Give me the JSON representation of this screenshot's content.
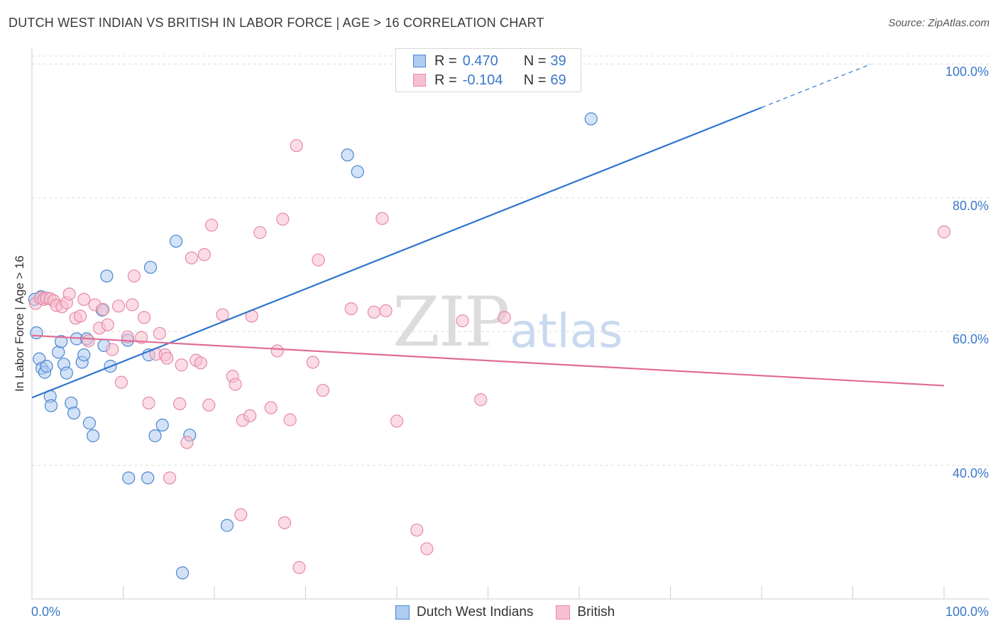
{
  "title": "DUTCH WEST INDIAN VS BRITISH IN LABOR FORCE | AGE > 16 CORRELATION CHART",
  "source": "Source: ZipAtlas.com",
  "watermark": {
    "zip": "ZIP",
    "atlas": "atlas"
  },
  "colors": {
    "blue_fill": "#aecbf0",
    "blue_stroke": "#4a86d0",
    "blue_line": "#2f74cf",
    "pink_fill": "#f7c0d0",
    "pink_stroke": "#e58aa6",
    "pink_line": "#e06c94",
    "axis_text": "#3a78c9",
    "grid": "#dddddd"
  },
  "legend": {
    "rows": [
      {
        "r_label": "R =",
        "r_value": "0.470",
        "n_label": "N =",
        "n_value": "39",
        "swatch": "blue"
      },
      {
        "r_label": "R =",
        "r_value": "-0.104",
        "n_label": "N =",
        "n_value": "69",
        "swatch": "pink"
      }
    ]
  },
  "bottom_legend": [
    {
      "label": "Dutch West Indians",
      "swatch": "blue"
    },
    {
      "label": "British",
      "swatch": "pink"
    }
  ],
  "x_axis": {
    "min_label": "0.0%",
    "max_label": "100.0%"
  },
  "chart_data": {
    "type": "scatter",
    "title": "DUTCH WEST INDIAN VS BRITISH IN LABOR FORCE | AGE > 16 CORRELATION CHART",
    "xlabel": "",
    "ylabel": "In Labor Force | Age > 16",
    "xlim": [
      0,
      100
    ],
    "ylim": [
      20.0,
      103.0
    ],
    "y_ticks": [
      {
        "value": 40,
        "label": "40.0%"
      },
      {
        "value": 60,
        "label": "60.0%"
      },
      {
        "value": 80,
        "label": "80.0%"
      },
      {
        "value": 100,
        "label": "100.0%"
      }
    ],
    "series": [
      {
        "name": "Dutch West Indians",
        "color": "blue",
        "points": [
          [
            0.5,
            59.8
          ],
          [
            0.8,
            55.9
          ],
          [
            1.1,
            54.5
          ],
          [
            1.4,
            53.9
          ],
          [
            1.6,
            54.8
          ],
          [
            2.0,
            50.3
          ],
          [
            2.1,
            48.9
          ],
          [
            2.9,
            56.9
          ],
          [
            3.2,
            58.5
          ],
          [
            3.5,
            55.1
          ],
          [
            3.8,
            53.8
          ],
          [
            4.3,
            49.3
          ],
          [
            4.6,
            47.8
          ],
          [
            4.9,
            58.9
          ],
          [
            5.5,
            55.4
          ],
          [
            5.7,
            56.5
          ],
          [
            6.0,
            58.9
          ],
          [
            6.3,
            46.3
          ],
          [
            6.7,
            44.4
          ],
          [
            7.7,
            63.2
          ],
          [
            7.9,
            57.9
          ],
          [
            8.2,
            68.3
          ],
          [
            8.6,
            54.8
          ],
          [
            10.5,
            58.7
          ],
          [
            10.6,
            38.1
          ],
          [
            12.7,
            38.1
          ],
          [
            12.8,
            56.5
          ],
          [
            13.0,
            69.6
          ],
          [
            13.5,
            44.4
          ],
          [
            14.3,
            46.0
          ],
          [
            15.8,
            73.5
          ],
          [
            16.5,
            23.9
          ],
          [
            17.3,
            44.5
          ],
          [
            21.4,
            31.0
          ],
          [
            34.6,
            86.4
          ],
          [
            35.7,
            83.9
          ],
          [
            61.3,
            91.8
          ],
          [
            0.3,
            64.8
          ],
          [
            1.0,
            65.2
          ]
        ],
        "trend": {
          "x0": 0.0,
          "y0": 50.1,
          "x1": 80.0,
          "y1": 93.5,
          "dash_to_x": 92.0,
          "dash_to_y": 100.0
        }
      },
      {
        "name": "British",
        "color": "pink",
        "points": [
          [
            0.4,
            64.2
          ],
          [
            0.9,
            65.0
          ],
          [
            1.3,
            64.8
          ],
          [
            1.6,
            65.0
          ],
          [
            2.0,
            64.9
          ],
          [
            2.4,
            64.6
          ],
          [
            2.7,
            63.9
          ],
          [
            3.3,
            63.7
          ],
          [
            3.8,
            64.3
          ],
          [
            4.1,
            65.6
          ],
          [
            4.8,
            62.0
          ],
          [
            5.3,
            62.3
          ],
          [
            5.7,
            64.8
          ],
          [
            6.2,
            58.6
          ],
          [
            6.9,
            64.0
          ],
          [
            7.4,
            60.5
          ],
          [
            7.8,
            63.3
          ],
          [
            8.3,
            61.0
          ],
          [
            8.8,
            57.3
          ],
          [
            9.5,
            63.8
          ],
          [
            9.8,
            52.4
          ],
          [
            10.5,
            59.2
          ],
          [
            11.0,
            64.0
          ],
          [
            11.2,
            68.3
          ],
          [
            12.0,
            59.1
          ],
          [
            12.3,
            62.1
          ],
          [
            12.8,
            49.3
          ],
          [
            13.6,
            56.6
          ],
          [
            14.0,
            59.7
          ],
          [
            14.6,
            56.5
          ],
          [
            14.8,
            56.0
          ],
          [
            15.1,
            38.1
          ],
          [
            16.2,
            49.2
          ],
          [
            16.4,
            55.0
          ],
          [
            17.0,
            43.4
          ],
          [
            17.5,
            71.0
          ],
          [
            18.0,
            55.7
          ],
          [
            18.5,
            55.3
          ],
          [
            18.9,
            71.5
          ],
          [
            19.4,
            49.0
          ],
          [
            19.7,
            75.9
          ],
          [
            20.9,
            62.5
          ],
          [
            22.0,
            53.3
          ],
          [
            22.3,
            52.1
          ],
          [
            22.9,
            32.6
          ],
          [
            23.1,
            46.7
          ],
          [
            23.9,
            47.4
          ],
          [
            24.1,
            62.3
          ],
          [
            25.0,
            74.8
          ],
          [
            26.2,
            48.6
          ],
          [
            26.9,
            57.1
          ],
          [
            27.5,
            76.8
          ],
          [
            27.7,
            31.4
          ],
          [
            28.3,
            46.8
          ],
          [
            29.0,
            87.8
          ],
          [
            29.3,
            24.7
          ],
          [
            30.8,
            55.4
          ],
          [
            31.4,
            70.7
          ],
          [
            31.9,
            51.2
          ],
          [
            35.0,
            63.4
          ],
          [
            37.5,
            62.9
          ],
          [
            38.4,
            76.9
          ],
          [
            38.8,
            63.1
          ],
          [
            40.0,
            46.6
          ],
          [
            42.2,
            30.3
          ],
          [
            43.3,
            27.5
          ],
          [
            47.2,
            61.6
          ],
          [
            49.2,
            49.8
          ],
          [
            51.8,
            62.1
          ],
          [
            100.0,
            74.9
          ]
        ],
        "trend": {
          "x0": 0.0,
          "y0": 59.4,
          "x1": 100.0,
          "y1": 51.9
        }
      }
    ]
  }
}
